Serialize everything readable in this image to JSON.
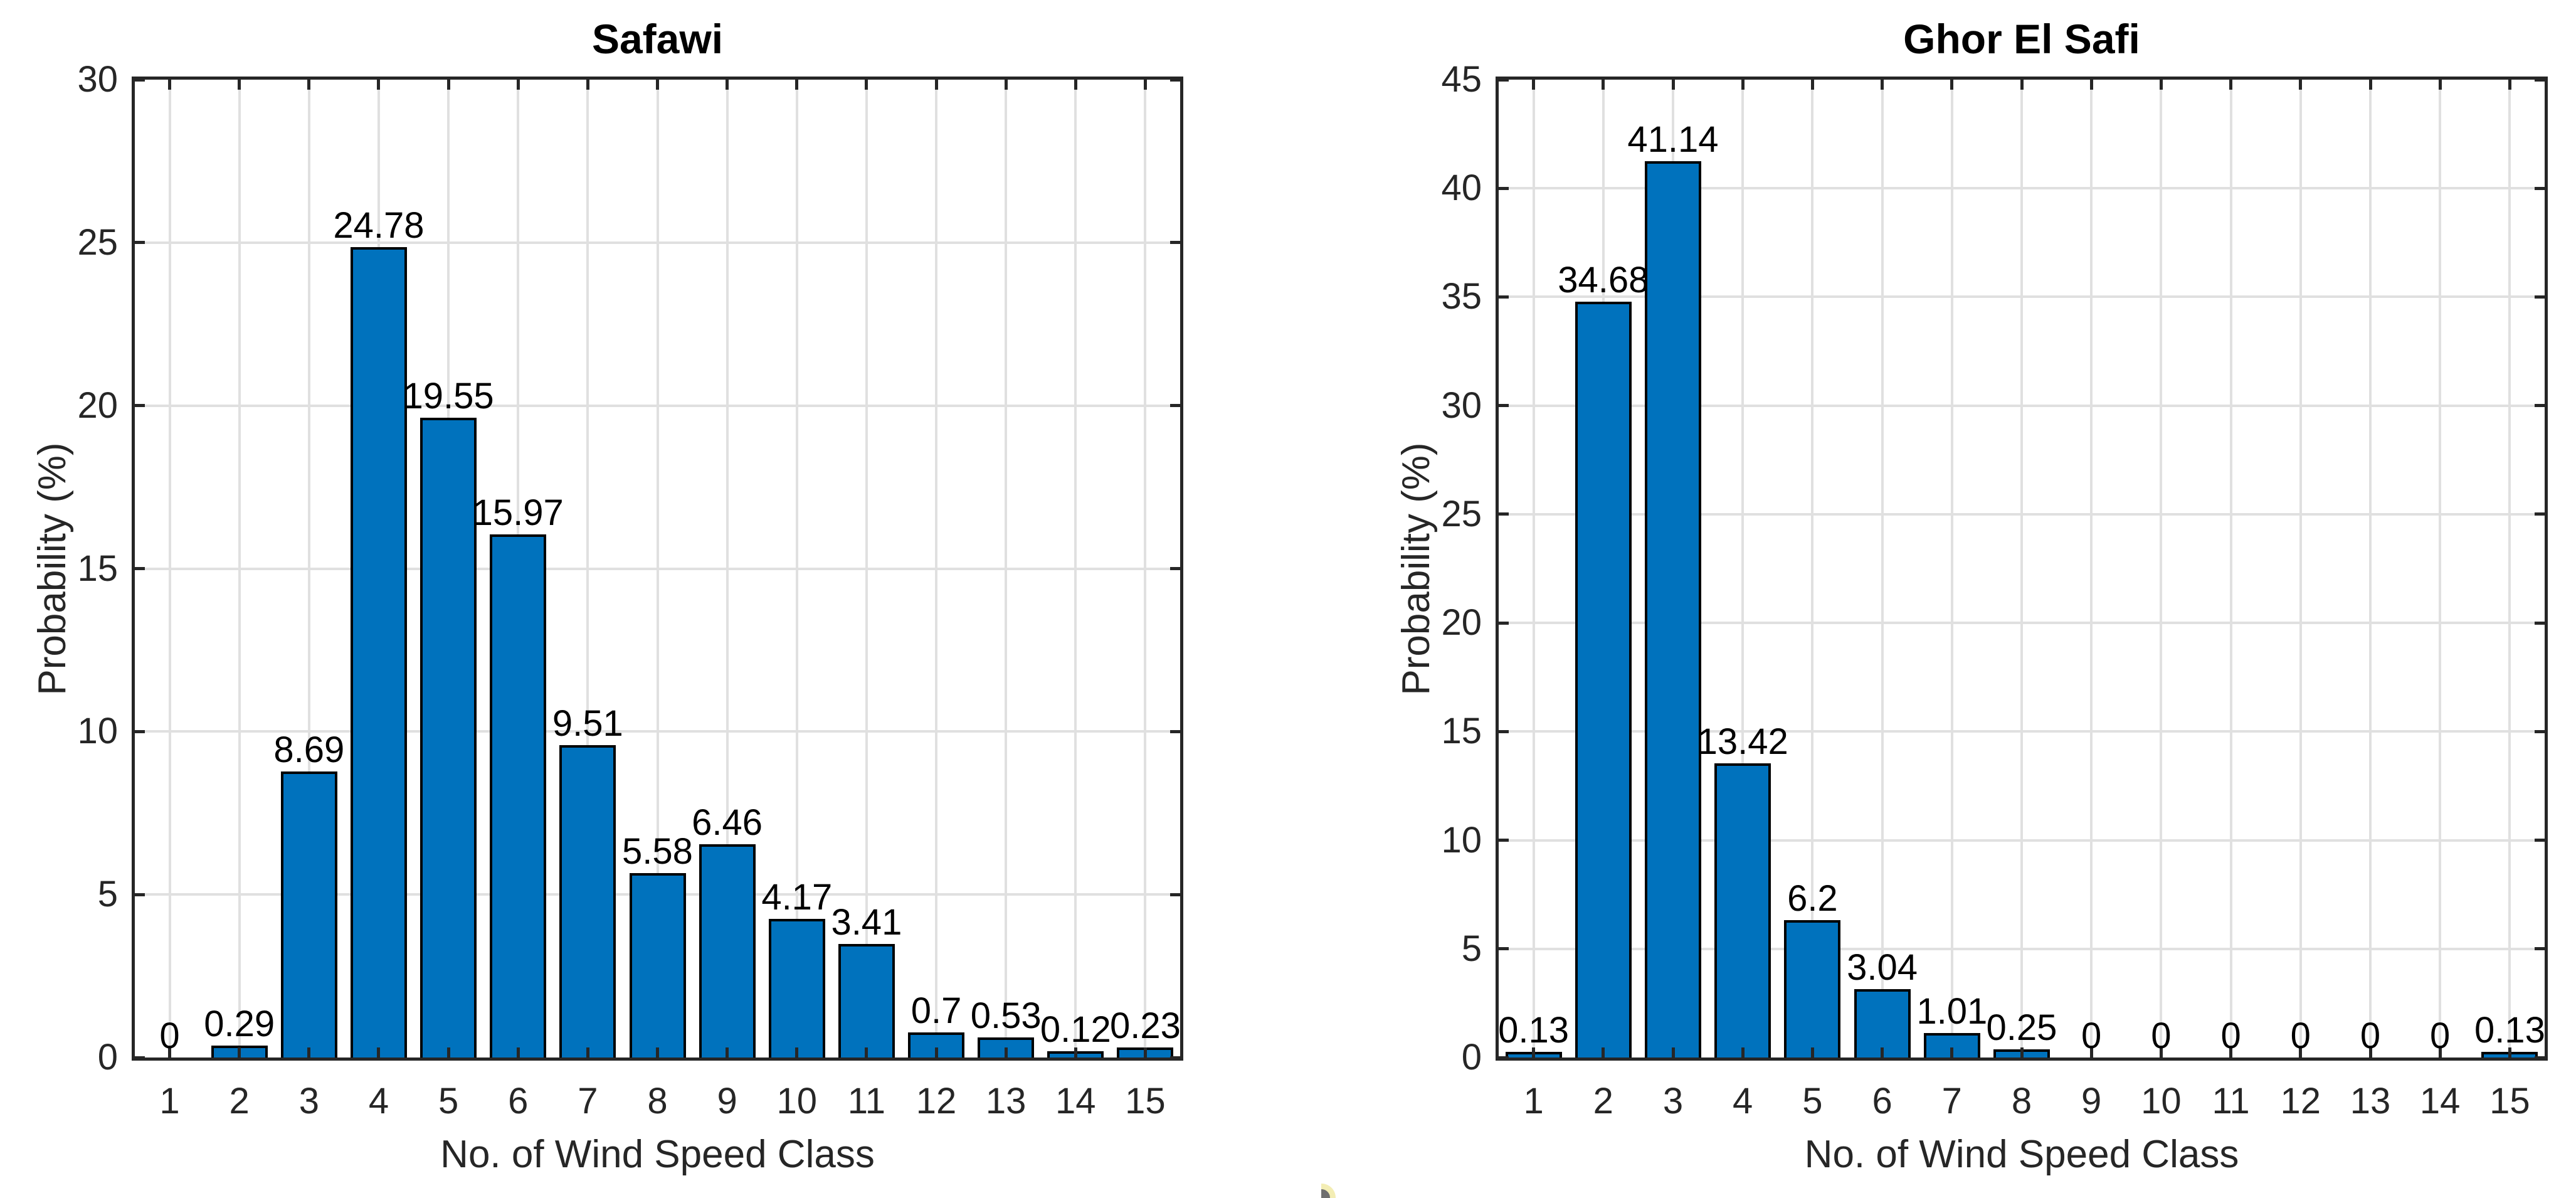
{
  "figure": {
    "colors": {
      "background": "#FFFFFF",
      "bar_fill": "#0072BD",
      "bar_edge": "#000000",
      "axis_color": "#262626",
      "axis_text": "#262626",
      "grid_color": "#E0E0E0",
      "title_color": "#000000",
      "value_label_color": "#000000",
      "artifact_ring": "#F3EDB4",
      "artifact_core": "#6F6F6F"
    },
    "artifact_mark": "small clipped yellow-ring / gray-core cursor mark at bottom center"
  },
  "chart_data": [
    {
      "type": "bar",
      "title": "Safawi",
      "xlabel": "No. of Wind Speed Class",
      "ylabel": "Probability (%)",
      "categories": [
        "1",
        "2",
        "3",
        "4",
        "5",
        "6",
        "7",
        "8",
        "9",
        "10",
        "11",
        "12",
        "13",
        "14",
        "15"
      ],
      "values": [
        0,
        0.29,
        8.69,
        24.78,
        19.55,
        15.97,
        9.51,
        5.58,
        6.46,
        4.17,
        3.41,
        0.7,
        0.53,
        0.12,
        0.23
      ],
      "value_labels": [
        "0",
        "0.29",
        "8.69",
        "24.78",
        "19.55",
        "15.97",
        "9.51",
        "5.58",
        "6.46",
        "4.17",
        "3.41",
        "0.7",
        "0.53",
        "0.12",
        "0.23"
      ],
      "ylim": [
        0,
        30
      ],
      "yticks": [
        0,
        5,
        10,
        15,
        20,
        25,
        30
      ],
      "grid": "on",
      "legend": "none",
      "box": "on"
    },
    {
      "type": "bar",
      "title": "Ghor El Safi",
      "xlabel": "No. of Wind Speed Class",
      "ylabel": "Probability (%)",
      "categories": [
        "1",
        "2",
        "3",
        "4",
        "5",
        "6",
        "7",
        "8",
        "9",
        "10",
        "11",
        "12",
        "13",
        "14",
        "15"
      ],
      "values": [
        0.13,
        34.68,
        41.14,
        13.42,
        6.2,
        3.04,
        1.01,
        0.25,
        0,
        0,
        0,
        0,
        0,
        0,
        0.13
      ],
      "value_labels": [
        "0.13",
        "34.68",
        "41.14",
        "13.42",
        "6.2",
        "3.04",
        "1.01",
        "0.25",
        "0",
        "0",
        "0",
        "0",
        "0",
        "0",
        "0.13"
      ],
      "ylim": [
        0,
        45
      ],
      "yticks": [
        0,
        5,
        10,
        15,
        20,
        25,
        30,
        35,
        40,
        45
      ],
      "grid": "on",
      "legend": "none",
      "box": "on"
    }
  ]
}
